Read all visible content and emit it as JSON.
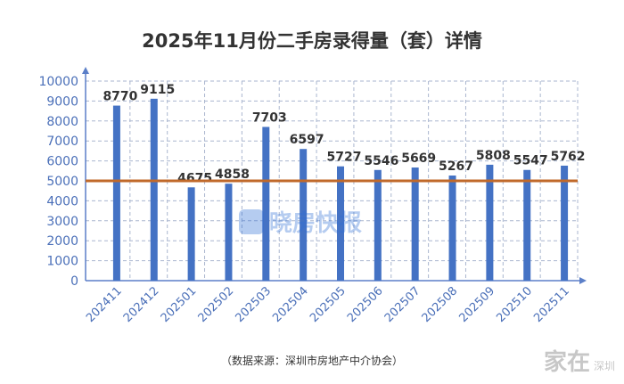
{
  "title": "2025年11月份二手房录得量（套）详情",
  "source": "（数据来源：深圳市房地产中介协会）",
  "watermark": {
    "text": "晓房快报"
  },
  "corner_watermark": {
    "main": "家在",
    "sub": "深圳"
  },
  "chart_data": {
    "type": "bar",
    "title": "2025年11月份二手房录得量（套）详情",
    "categories": [
      "202411",
      "202412",
      "202501",
      "202502",
      "202503",
      "202504",
      "202505",
      "202506",
      "202507",
      "202508",
      "202509",
      "202510",
      "202511"
    ],
    "values": [
      8770,
      9115,
      4675,
      4858,
      7703,
      6597,
      5727,
      5546,
      5669,
      5267,
      5808,
      5547,
      5762
    ],
    "reference_line": {
      "value": 5000,
      "color": "#c0692a"
    },
    "ylim": [
      0,
      10000
    ],
    "yticks": [
      0,
      1000,
      2000,
      3000,
      4000,
      5000,
      6000,
      7000,
      8000,
      9000,
      10000
    ],
    "grid": true,
    "colors": {
      "bar": "#4472c4",
      "axis": "#5b7fc8",
      "grid": "#aab6cf",
      "label": "#333333",
      "tick": "#4a6fb8"
    }
  }
}
